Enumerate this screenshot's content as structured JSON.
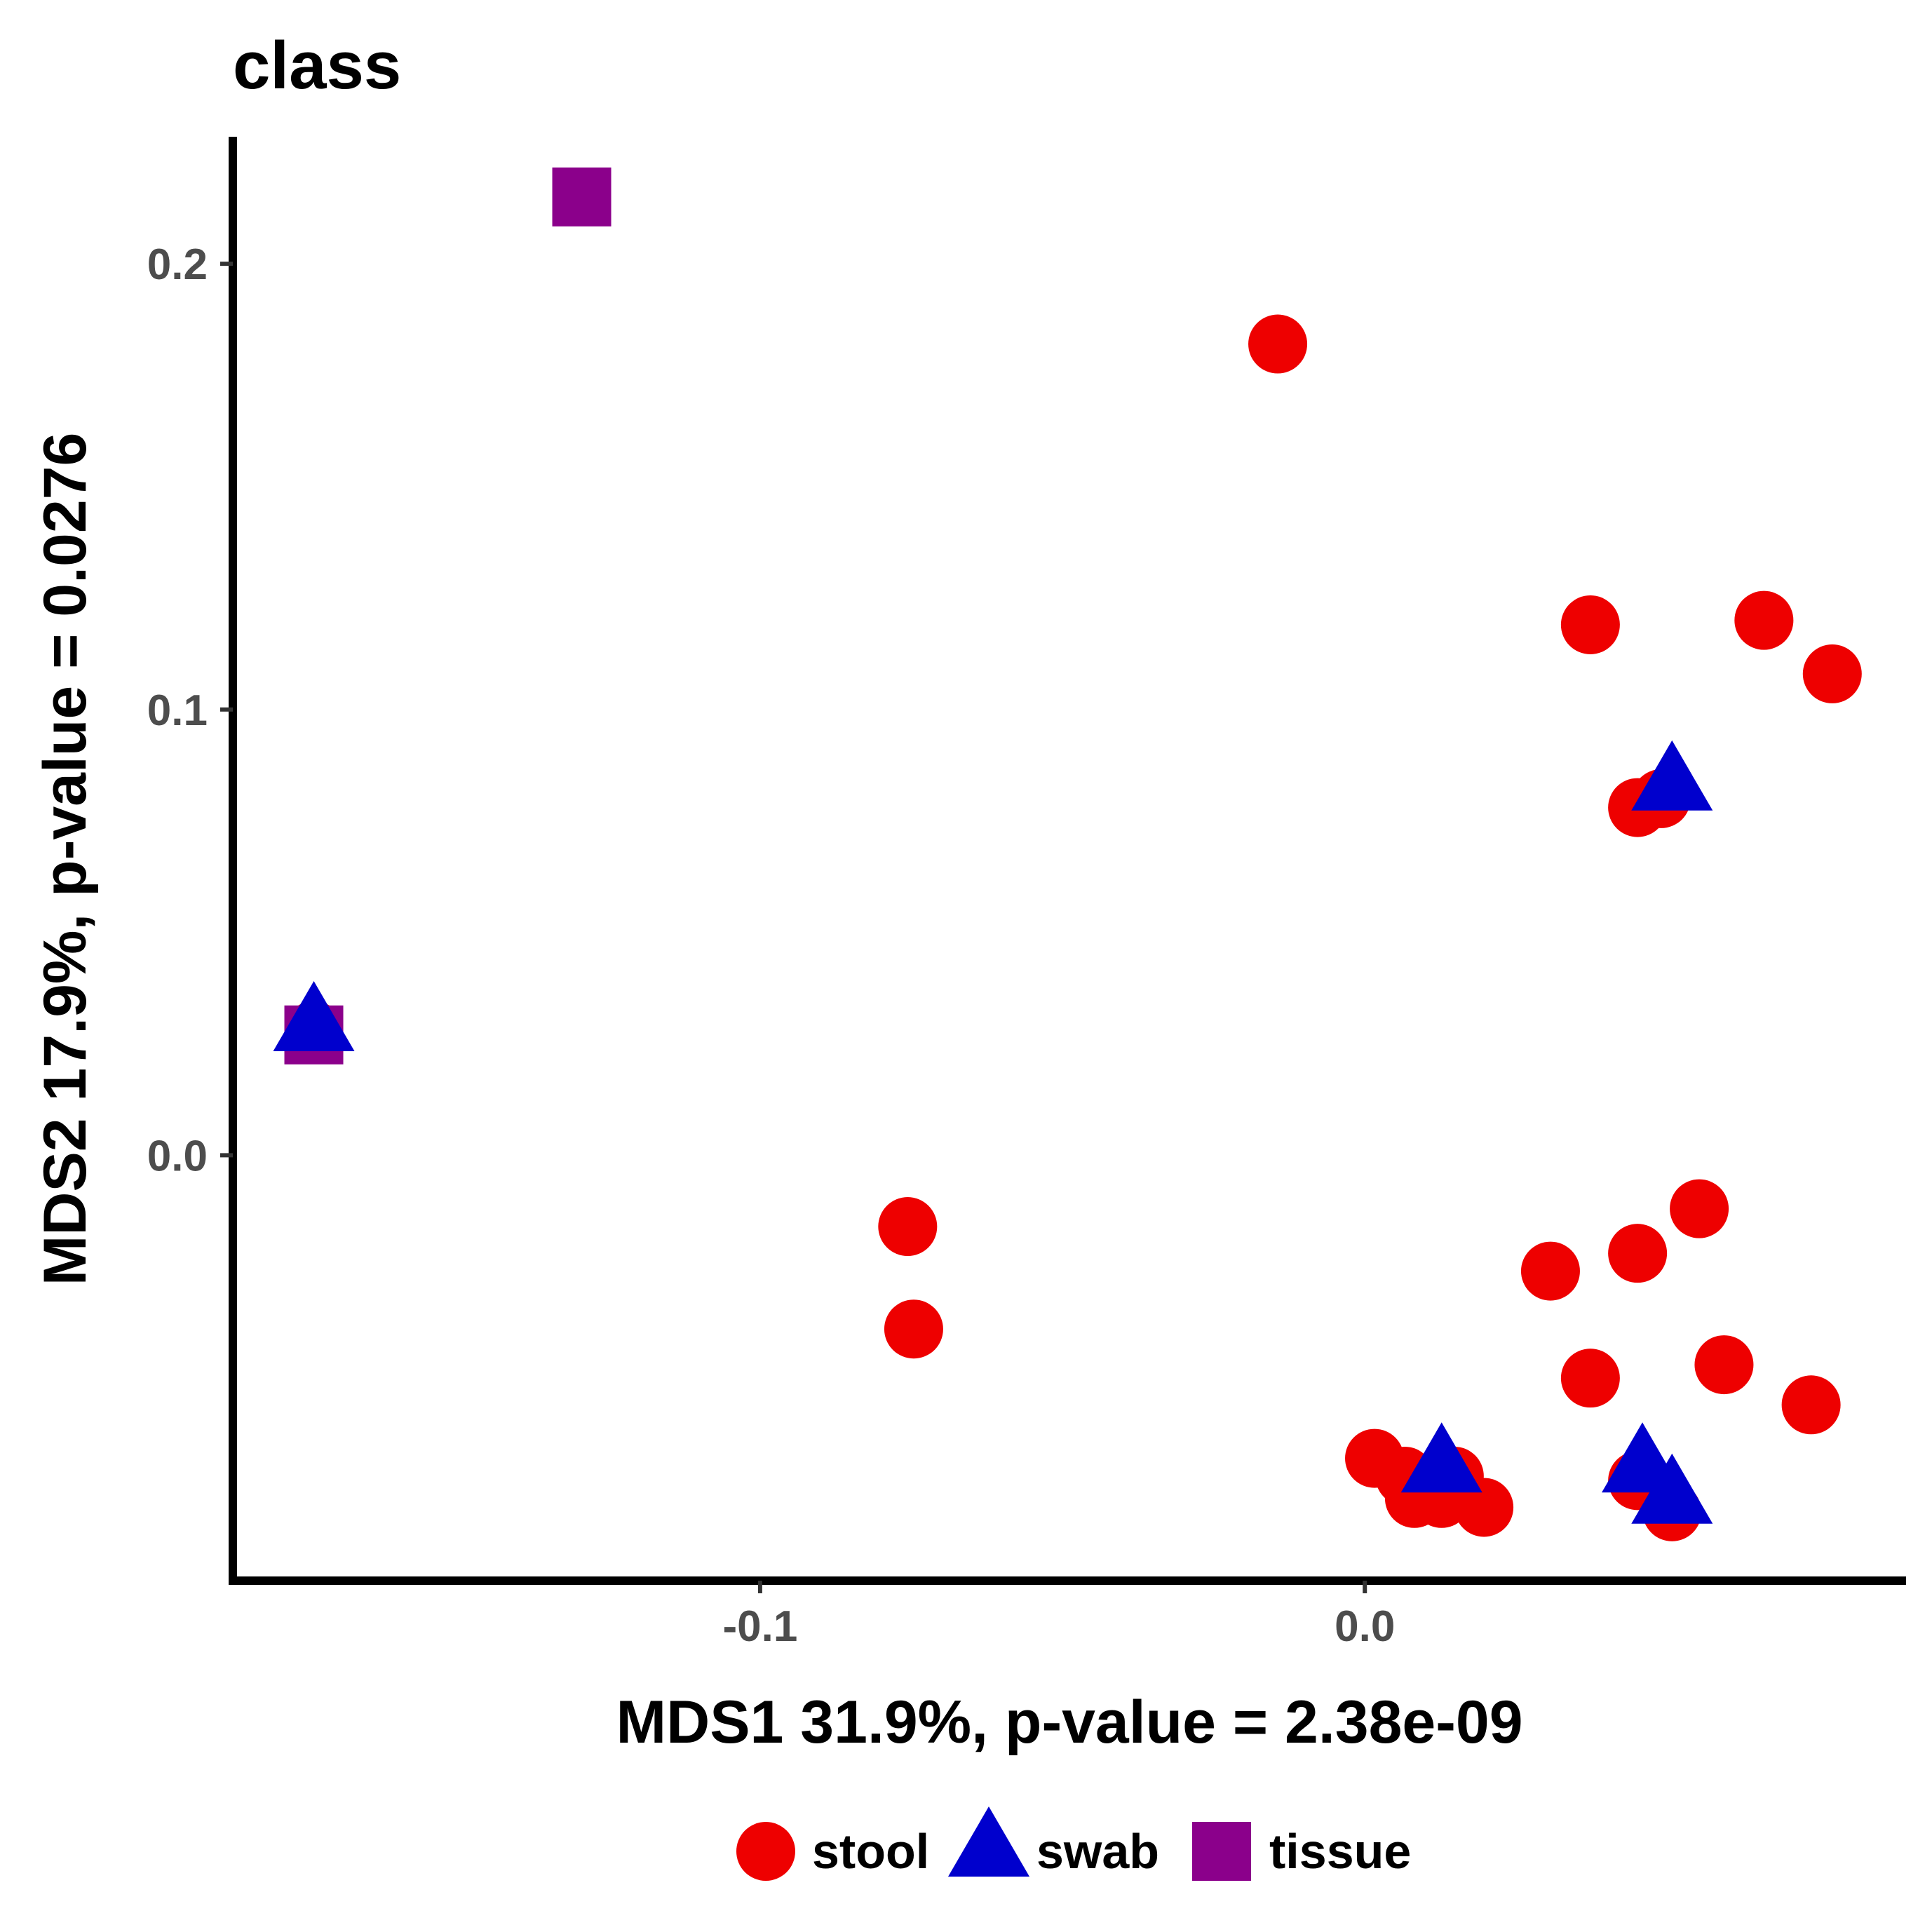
{
  "chart_data": {
    "type": "scatter",
    "title": "class",
    "xlabel": "MDS1 31.9%, p-value = 2.38e-09",
    "ylabel": "MDS2 17.9%, p-value = 0.0276",
    "xlim": [
      -0.1865,
      0.0895
    ],
    "ylim": [
      -0.0945,
      0.2285
    ],
    "xticks": [
      {
        "value": -0.1,
        "label": "-0.1"
      },
      {
        "value": 0.0,
        "label": "0.0"
      }
    ],
    "yticks": [
      {
        "value": 0.0,
        "label": "0.0"
      },
      {
        "value": 0.1,
        "label": "0.1"
      },
      {
        "value": 0.2,
        "label": "0.2"
      }
    ],
    "grid": false,
    "legend_position": "bottom",
    "series": [
      {
        "name": "stool",
        "shape": "circle",
        "color": "#EE0000",
        "points": [
          {
            "x": -0.0144,
            "y": 0.182
          },
          {
            "x": 0.0373,
            "y": 0.119
          },
          {
            "x": 0.066,
            "y": 0.12
          },
          {
            "x": 0.0773,
            "y": 0.108
          },
          {
            "x": 0.0451,
            "y": 0.078
          },
          {
            "x": 0.049,
            "y": 0.08
          },
          {
            "x": -0.0756,
            "y": -0.016
          },
          {
            "x": -0.0746,
            "y": -0.039
          },
          {
            "x": 0.0553,
            "y": -0.012
          },
          {
            "x": 0.0451,
            "y": -0.022
          },
          {
            "x": 0.0307,
            "y": -0.026
          },
          {
            "x": 0.0373,
            "y": -0.05
          },
          {
            "x": 0.0594,
            "y": -0.047
          },
          {
            "x": 0.0738,
            "y": -0.056
          },
          {
            "x": 0.0016,
            "y": -0.068
          },
          {
            "x": 0.0066,
            "y": -0.072
          },
          {
            "x": 0.0082,
            "y": -0.077
          },
          {
            "x": 0.0127,
            "y": -0.077
          },
          {
            "x": 0.0148,
            "y": -0.072
          },
          {
            "x": 0.0197,
            "y": -0.079
          },
          {
            "x": 0.0451,
            "y": -0.073
          },
          {
            "x": 0.0508,
            "y": -0.08
          },
          {
            "x": -0.1738,
            "y": 0.028
          }
        ]
      },
      {
        "name": "swab",
        "shape": "triangle",
        "color": "#0000CD",
        "points": [
          {
            "x": 0.0508,
            "y": 0.083
          },
          {
            "x": -0.1738,
            "y": 0.029
          },
          {
            "x": 0.0127,
            "y": -0.07
          },
          {
            "x": 0.0459,
            "y": -0.07
          },
          {
            "x": 0.0508,
            "y": -0.077
          }
        ]
      },
      {
        "name": "tissue",
        "shape": "square",
        "color": "#8B008B",
        "points": [
          {
            "x": -0.1295,
            "y": 0.215
          },
          {
            "x": -0.1738,
            "y": 0.027
          }
        ]
      }
    ]
  }
}
